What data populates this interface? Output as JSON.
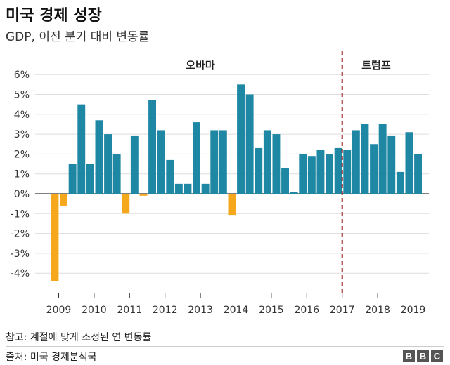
{
  "header": {
    "title": "미국 경제 성장",
    "subtitle": "GDP, 이전 분기 대비 변동률"
  },
  "footer": {
    "note": "참고: 계절에 맞게 조정된 연 변동률",
    "source": "출처: 미국 경제분석국",
    "logo_letters": [
      "B",
      "B",
      "C"
    ]
  },
  "colors": {
    "positive": "#1d87a4",
    "negative": "#f5a81c",
    "divider": "#9b1b1b",
    "grid": "#dddddd"
  },
  "chart_data": {
    "type": "bar",
    "title": "미국 경제 성장",
    "subtitle": "GDP, 이전 분기 대비 변동률",
    "ylim": [
      -5,
      6.5
    ],
    "y_ticks": [
      "6%",
      "5%",
      "4%",
      "3%",
      "2%",
      "1%",
      "0%",
      "-1%",
      "-2%",
      "-3%",
      "-4%"
    ],
    "y_tick_values": [
      6,
      5,
      4,
      3,
      2,
      1,
      0,
      -1,
      -2,
      -3,
      -4
    ],
    "x_tick_labels": [
      "2009",
      "2010",
      "2011",
      "2012",
      "2013",
      "2014",
      "2015",
      "2016",
      "2017",
      "2018",
      "2019"
    ],
    "first_year": 2009,
    "quarters": [
      "2009 Q1",
      "2009 Q2",
      "2009 Q3",
      "2009 Q4",
      "2010 Q1",
      "2010 Q2",
      "2010 Q3",
      "2010 Q4",
      "2011 Q1",
      "2011 Q2",
      "2011 Q3",
      "2011 Q4",
      "2012 Q1",
      "2012 Q2",
      "2012 Q3",
      "2012 Q4",
      "2013 Q1",
      "2013 Q2",
      "2013 Q3",
      "2013 Q4",
      "2014 Q1",
      "2014 Q2",
      "2014 Q3",
      "2014 Q4",
      "2015 Q1",
      "2015 Q2",
      "2015 Q3",
      "2015 Q4",
      "2016 Q1",
      "2016 Q2",
      "2016 Q3",
      "2016 Q4",
      "2017 Q1",
      "2017 Q2",
      "2017 Q3",
      "2017 Q4",
      "2018 Q1",
      "2018 Q2",
      "2018 Q3",
      "2018 Q4",
      "2019 Q1",
      "2019 Q2"
    ],
    "values": [
      -4.4,
      -0.6,
      1.5,
      4.5,
      1.5,
      3.7,
      3.0,
      2.0,
      -1.0,
      2.9,
      -0.1,
      4.7,
      3.2,
      1.7,
      0.5,
      0.5,
      3.6,
      0.5,
      3.2,
      3.2,
      -1.1,
      5.5,
      5.0,
      2.3,
      3.2,
      3.0,
      1.3,
      0.1,
      2.0,
      1.9,
      2.2,
      2.0,
      2.3,
      2.2,
      3.2,
      3.5,
      2.5,
      3.5,
      2.9,
      1.1,
      3.1,
      2.0
    ],
    "annotations": [
      {
        "label": "오바마",
        "period": "2009–2016"
      },
      {
        "label": "트럼프",
        "period": "2017–"
      }
    ],
    "divider_at": "2017",
    "grid": true
  }
}
